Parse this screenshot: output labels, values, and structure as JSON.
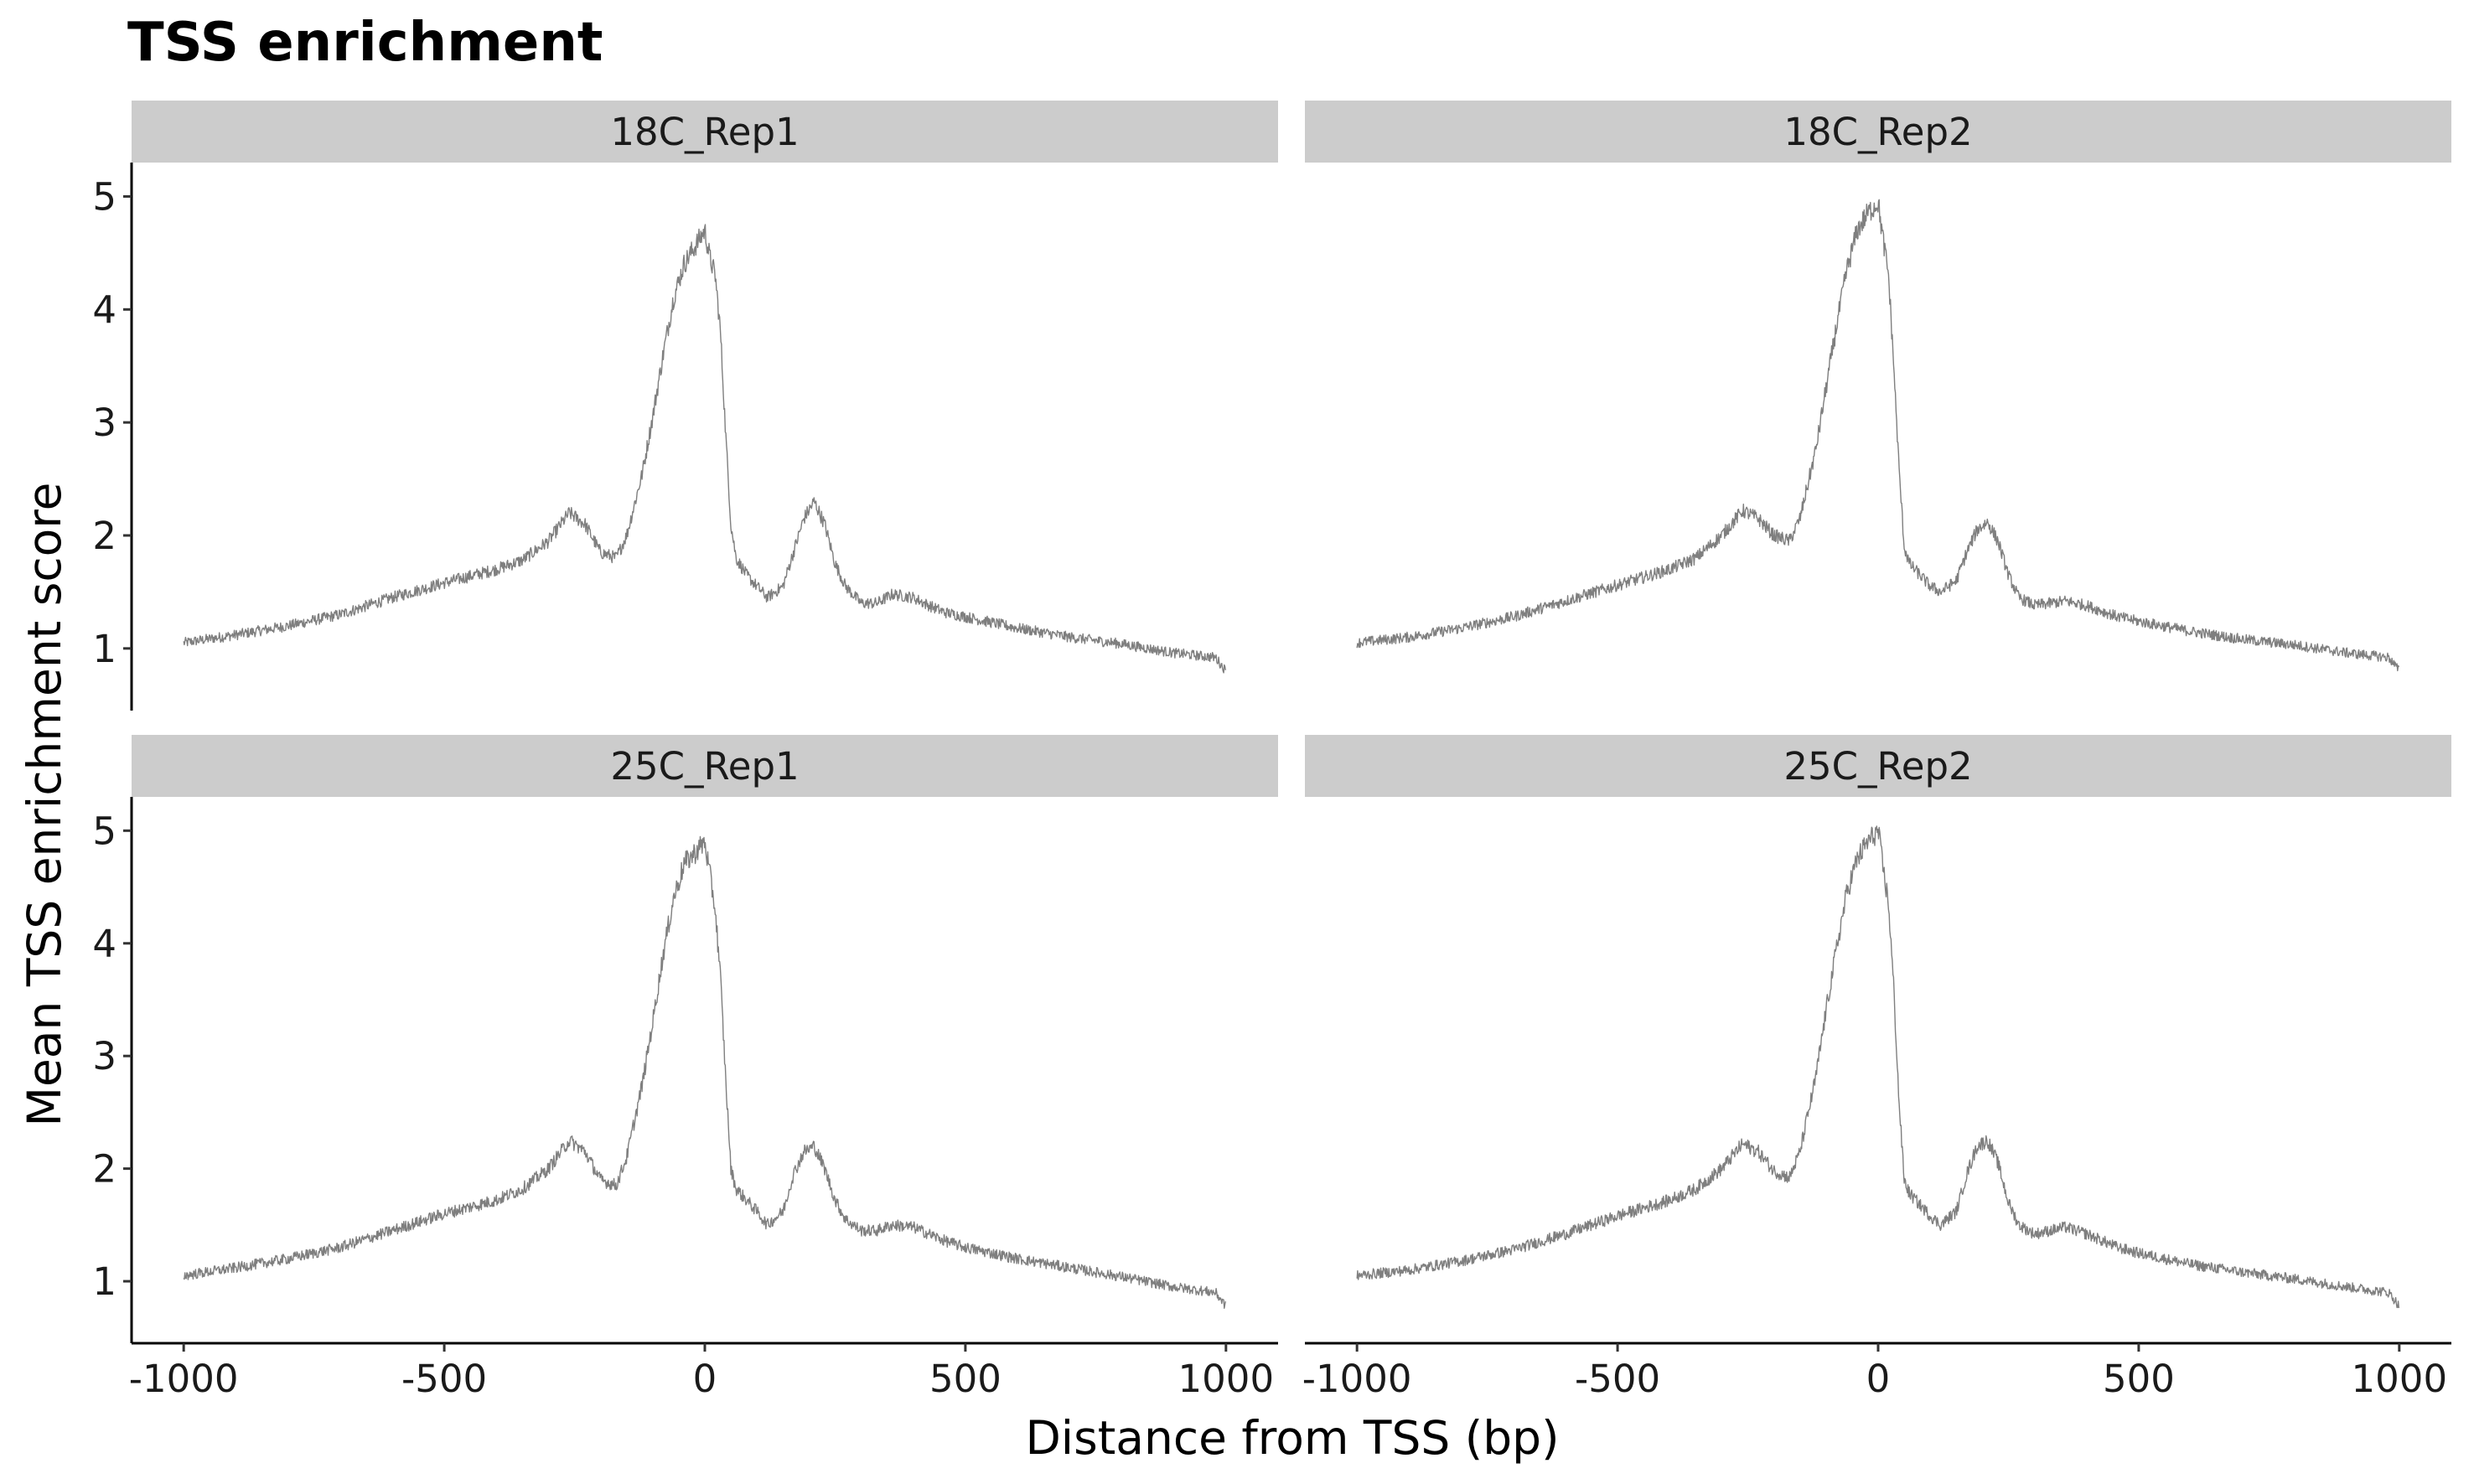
{
  "chart_data": {
    "type": "line",
    "title": "TSS enrichment",
    "xlabel": "Distance from TSS (bp)",
    "ylabel": "Mean TSS enrichment score",
    "xlim": [
      -1100,
      1100
    ],
    "ylim": [
      0.45,
      5.3
    ],
    "x_ticks": [
      -1000,
      -500,
      0,
      500,
      1000
    ],
    "x_tick_labels": [
      "-1000",
      "-500",
      "0",
      "500",
      "1000"
    ],
    "y_ticks": [
      1,
      2,
      3,
      4,
      5
    ],
    "y_tick_labels": [
      "1",
      "2",
      "3",
      "4",
      "5"
    ],
    "grid": false,
    "line_color": "#7f7f7f",
    "strip_color": "#cccccc",
    "facet_layout": "2x2",
    "x": [
      -1000,
      -900,
      -800,
      -700,
      -600,
      -500,
      -400,
      -350,
      -300,
      -260,
      -230,
      -200,
      -170,
      -150,
      -120,
      -100,
      -80,
      -60,
      -40,
      -20,
      0,
      10,
      20,
      30,
      40,
      50,
      60,
      80,
      100,
      120,
      150,
      170,
      190,
      210,
      230,
      250,
      270,
      300,
      330,
      360,
      400,
      430,
      460,
      500,
      600,
      700,
      800,
      900,
      980,
      1000
    ],
    "panels": [
      {
        "name": "18C_Rep1",
        "values": [
          1.05,
          1.12,
          1.2,
          1.3,
          1.45,
          1.58,
          1.7,
          1.78,
          1.95,
          2.2,
          2.1,
          1.85,
          1.8,
          2.0,
          2.55,
          3.05,
          3.6,
          4.1,
          4.4,
          4.55,
          4.7,
          4.45,
          4.3,
          3.8,
          2.9,
          2.1,
          1.8,
          1.65,
          1.55,
          1.45,
          1.55,
          1.85,
          2.15,
          2.3,
          2.1,
          1.75,
          1.55,
          1.4,
          1.4,
          1.48,
          1.45,
          1.38,
          1.32,
          1.28,
          1.18,
          1.1,
          1.04,
          0.96,
          0.92,
          0.8
        ]
      },
      {
        "name": "18C_Rep2",
        "values": [
          1.05,
          1.1,
          1.18,
          1.28,
          1.42,
          1.56,
          1.7,
          1.8,
          2.0,
          2.22,
          2.15,
          2.0,
          1.95,
          2.15,
          2.75,
          3.3,
          3.85,
          4.35,
          4.7,
          4.85,
          4.95,
          4.6,
          4.3,
          3.5,
          2.6,
          1.9,
          1.75,
          1.65,
          1.55,
          1.5,
          1.6,
          1.85,
          2.05,
          2.12,
          1.95,
          1.65,
          1.45,
          1.38,
          1.4,
          1.42,
          1.38,
          1.33,
          1.28,
          1.24,
          1.15,
          1.08,
          1.03,
          0.96,
          0.92,
          0.8
        ]
      },
      {
        "name": "25C_Rep1",
        "values": [
          1.05,
          1.12,
          1.2,
          1.3,
          1.45,
          1.6,
          1.72,
          1.82,
          2.0,
          2.25,
          2.15,
          1.9,
          1.85,
          2.1,
          2.75,
          3.3,
          3.9,
          4.4,
          4.7,
          4.8,
          4.9,
          4.6,
          4.3,
          3.7,
          2.8,
          2.0,
          1.82,
          1.72,
          1.62,
          1.5,
          1.62,
          1.95,
          2.15,
          2.2,
          2.0,
          1.72,
          1.55,
          1.45,
          1.45,
          1.5,
          1.48,
          1.42,
          1.36,
          1.3,
          1.2,
          1.12,
          1.04,
          0.95,
          0.9,
          0.78
        ]
      },
      {
        "name": "25C_Rep2",
        "values": [
          1.05,
          1.1,
          1.18,
          1.28,
          1.42,
          1.58,
          1.72,
          1.82,
          2.0,
          2.22,
          2.15,
          1.98,
          1.92,
          2.15,
          2.8,
          3.4,
          3.95,
          4.45,
          4.75,
          4.9,
          5.0,
          4.65,
          4.35,
          3.6,
          2.6,
          1.9,
          1.78,
          1.68,
          1.58,
          1.5,
          1.62,
          1.95,
          2.2,
          2.25,
          2.05,
          1.7,
          1.5,
          1.42,
          1.45,
          1.48,
          1.42,
          1.36,
          1.3,
          1.25,
          1.15,
          1.08,
          1.02,
          0.95,
          0.9,
          0.78
        ]
      }
    ]
  }
}
